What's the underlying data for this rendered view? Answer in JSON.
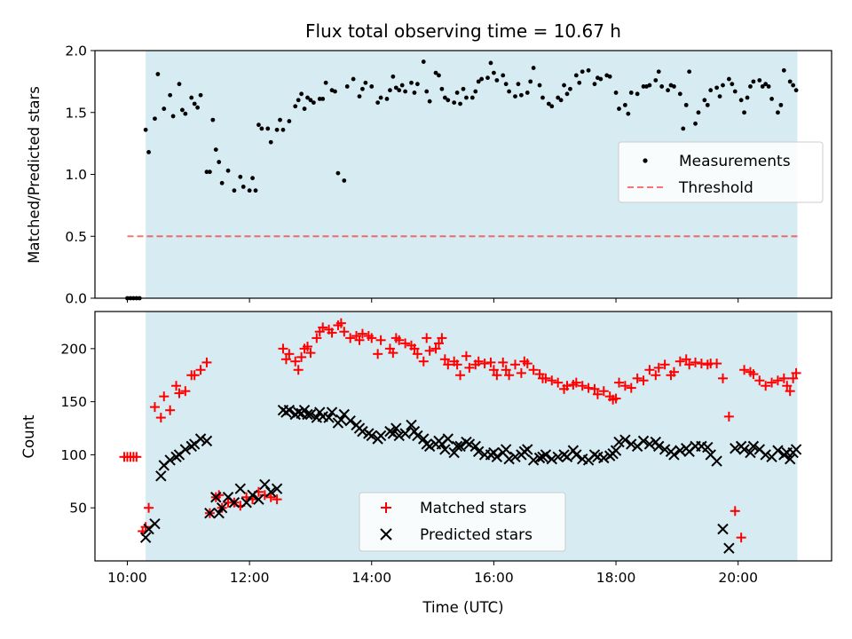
{
  "title": "Flux total observing time = 10.67 h",
  "colors": {
    "background": "#ffffff",
    "shade": "#add8e6",
    "measurement": "#000000",
    "threshold": "#ff0000",
    "matched": "#ff0000",
    "predicted": "#000000"
  },
  "chart_data": [
    {
      "type": "scatter",
      "xlabel": "",
      "ylabel": "Matched/Predicted stars",
      "xlim": [
        9.47,
        21.53
      ],
      "ylim": [
        0,
        2.0
      ],
      "yticks": [
        0.0,
        0.5,
        1.0,
        1.5,
        2.0
      ],
      "ytick_labels": [
        "0.0",
        "0.5",
        "1.0",
        "1.5",
        "2.0"
      ],
      "shaded_region": [
        10.3,
        20.97
      ],
      "legend": {
        "placement": "center-right",
        "entries": [
          "Measurements",
          "Threshold"
        ]
      },
      "threshold": {
        "name": "Threshold",
        "value": 0.5,
        "x_range": [
          10.0,
          20.97
        ],
        "style": "dashed"
      },
      "series": [
        {
          "name": "Measurements",
          "x": [
            10.0,
            10.05,
            10.1,
            10.15,
            10.2,
            10.3,
            10.35,
            10.45,
            10.5,
            10.6,
            10.7,
            10.75,
            10.85,
            10.9,
            10.95,
            11.05,
            11.1,
            11.15,
            11.2,
            11.3,
            11.35,
            11.4,
            11.45,
            11.5,
            11.55,
            11.65,
            11.75,
            11.85,
            11.9,
            12.0,
            12.05,
            12.1,
            12.15,
            12.2,
            12.3,
            12.35,
            12.45,
            12.5,
            12.55,
            12.65,
            12.75,
            12.8,
            12.85,
            12.9,
            12.95,
            13.0,
            13.05,
            13.15,
            13.2,
            13.25,
            13.35,
            13.4,
            13.45,
            13.55,
            13.6,
            13.7,
            13.8,
            13.85,
            13.9,
            14.0,
            14.1,
            14.15,
            14.25,
            14.3,
            14.35,
            14.4,
            14.45,
            14.5,
            14.55,
            14.65,
            14.7,
            14.75,
            14.85,
            14.9,
            14.95,
            15.05,
            15.1,
            15.15,
            15.2,
            15.25,
            15.35,
            15.4,
            15.45,
            15.5,
            15.55,
            15.65,
            15.7,
            15.75,
            15.8,
            15.9,
            15.95,
            16.0,
            16.05,
            16.15,
            16.2,
            16.25,
            16.35,
            16.4,
            16.45,
            16.55,
            16.6,
            16.65,
            16.75,
            16.8,
            16.9,
            16.95,
            17.05,
            17.1,
            17.15,
            17.2,
            17.25,
            17.35,
            17.4,
            17.45,
            17.55,
            17.65,
            17.7,
            17.75,
            17.85,
            17.9,
            18.0,
            18.05,
            18.15,
            18.2,
            18.25,
            18.35,
            18.45,
            18.5,
            18.55,
            18.65,
            18.7,
            18.75,
            18.85,
            18.9,
            18.95,
            19.05,
            19.1,
            19.15,
            19.2,
            19.3,
            19.35,
            19.45,
            19.5,
            19.55,
            19.65,
            19.7,
            19.75,
            19.85,
            19.9,
            19.95,
            20.05,
            20.1,
            20.15,
            20.2,
            20.25,
            20.35,
            20.4,
            20.45,
            20.5,
            20.55,
            20.65,
            20.7,
            20.75,
            20.85,
            20.9,
            20.95
          ],
          "y": [
            0.0,
            0.0,
            0.0,
            0.0,
            0.0,
            1.36,
            1.18,
            1.45,
            1.81,
            1.53,
            1.64,
            1.47,
            1.73,
            1.52,
            1.49,
            1.62,
            1.57,
            1.54,
            1.64,
            1.02,
            1.02,
            1.44,
            1.2,
            1.1,
            0.93,
            1.03,
            0.87,
            0.98,
            0.9,
            0.87,
            0.97,
            0.87,
            1.4,
            1.37,
            1.37,
            1.26,
            1.36,
            1.44,
            1.36,
            1.43,
            1.55,
            1.6,
            1.65,
            1.53,
            1.62,
            1.6,
            1.58,
            1.61,
            1.61,
            1.74,
            1.68,
            1.67,
            1.01,
            0.95,
            1.71,
            1.77,
            1.63,
            1.69,
            1.74,
            1.71,
            1.58,
            1.62,
            1.61,
            1.68,
            1.79,
            1.7,
            1.68,
            1.72,
            1.67,
            1.74,
            1.66,
            1.73,
            1.91,
            1.67,
            1.59,
            1.82,
            1.8,
            1.69,
            1.62,
            1.6,
            1.58,
            1.66,
            1.57,
            1.69,
            1.62,
            1.62,
            1.67,
            1.75,
            1.77,
            1.78,
            1.9,
            1.82,
            1.76,
            1.8,
            1.73,
            1.67,
            1.63,
            1.73,
            1.64,
            1.66,
            1.75,
            1.86,
            1.72,
            1.62,
            1.57,
            1.55,
            1.62,
            1.6,
            1.72,
            1.65,
            1.69,
            1.8,
            1.74,
            1.83,
            1.84,
            1.73,
            1.78,
            1.77,
            1.8,
            1.79,
            1.66,
            1.53,
            1.56,
            1.49,
            1.66,
            1.65,
            1.71,
            1.71,
            1.72,
            1.76,
            1.83,
            1.71,
            1.68,
            1.72,
            1.71,
            1.65,
            1.37,
            1.56,
            1.83,
            1.41,
            1.5,
            1.6,
            1.56,
            1.68,
            1.7,
            1.63,
            1.72,
            1.77,
            1.73,
            1.67,
            1.6,
            1.5,
            1.62,
            1.71,
            1.75,
            1.76,
            1.71,
            1.73,
            1.71,
            1.61,
            1.5,
            1.56,
            1.84,
            1.75,
            1.72,
            1.68
          ]
        }
      ]
    },
    {
      "type": "scatter",
      "xlabel": "Time (UTC)",
      "ylabel": "Count",
      "xlim": [
        9.47,
        21.53
      ],
      "ylim": [
        0,
        235
      ],
      "xticks": [
        10,
        12,
        14,
        16,
        18,
        20
      ],
      "xtick_labels": [
        "10:00",
        "12:00",
        "14:00",
        "16:00",
        "18:00",
        "20:00"
      ],
      "yticks": [
        50,
        100,
        150,
        200
      ],
      "ytick_labels": [
        "50",
        "100",
        "150",
        "200"
      ],
      "shaded_region": [
        10.3,
        20.97
      ],
      "legend": {
        "placement": "bottom-center",
        "entries": [
          "Matched stars",
          "Predicted stars"
        ]
      },
      "series": [
        {
          "name": "Matched stars",
          "marker": "plus",
          "x": [
            9.95,
            10.0,
            10.05,
            10.1,
            10.15,
            10.25,
            10.3,
            10.35,
            10.45,
            10.55,
            10.6,
            10.7,
            10.8,
            10.85,
            10.95,
            11.05,
            11.1,
            11.2,
            11.3,
            11.35,
            11.45,
            11.5,
            11.55,
            11.65,
            11.75,
            11.85,
            11.95,
            12.05,
            12.15,
            12.25,
            12.35,
            12.45,
            12.55,
            12.6,
            12.65,
            12.75,
            12.8,
            12.85,
            12.9,
            12.95,
            13.0,
            13.1,
            13.15,
            13.2,
            13.3,
            13.35,
            13.45,
            13.5,
            13.55,
            13.65,
            13.75,
            13.8,
            13.85,
            13.95,
            14.0,
            14.1,
            14.15,
            14.3,
            14.35,
            14.4,
            14.45,
            14.55,
            14.65,
            14.7,
            14.75,
            14.85,
            14.9,
            14.95,
            15.05,
            15.1,
            15.15,
            15.2,
            15.25,
            15.35,
            15.4,
            15.45,
            15.55,
            15.6,
            15.7,
            15.75,
            15.85,
            15.95,
            16.0,
            16.05,
            16.15,
            16.2,
            16.25,
            16.35,
            16.45,
            16.5,
            16.55,
            16.65,
            16.75,
            16.8,
            16.85,
            16.95,
            17.05,
            17.15,
            17.2,
            17.3,
            17.35,
            17.45,
            17.55,
            17.65,
            17.7,
            17.8,
            17.9,
            17.95,
            18.0,
            18.05,
            18.15,
            18.25,
            18.35,
            18.45,
            18.55,
            18.65,
            18.7,
            18.8,
            18.9,
            18.95,
            19.05,
            19.15,
            19.2,
            19.3,
            19.4,
            19.5,
            19.55,
            19.65,
            19.75,
            19.85,
            19.95,
            20.05,
            20.1,
            20.2,
            20.25,
            20.35,
            20.45,
            20.55,
            20.65,
            20.75,
            20.8,
            20.85,
            20.9,
            20.95
          ],
          "y": [
            98,
            98,
            98,
            98,
            98,
            28,
            32,
            50,
            145,
            135,
            155,
            142,
            165,
            158,
            160,
            175,
            175,
            180,
            187,
            45,
            60,
            62,
            50,
            55,
            55,
            52,
            60,
            58,
            65,
            62,
            60,
            58,
            200,
            190,
            195,
            188,
            180,
            192,
            200,
            202,
            196,
            210,
            216,
            220,
            218,
            215,
            222,
            224,
            216,
            210,
            212,
            208,
            214,
            212,
            210,
            195,
            208,
            200,
            196,
            210,
            208,
            205,
            203,
            200,
            195,
            188,
            210,
            198,
            200,
            205,
            210,
            190,
            185,
            188,
            185,
            175,
            193,
            182,
            185,
            188,
            186,
            187,
            180,
            175,
            187,
            180,
            175,
            185,
            177,
            188,
            186,
            180,
            176,
            172,
            172,
            170,
            168,
            162,
            165,
            166,
            168,
            165,
            163,
            162,
            157,
            160,
            155,
            152,
            153,
            168,
            165,
            163,
            172,
            170,
            180,
            175,
            182,
            185,
            175,
            178,
            188,
            190,
            185,
            187,
            186,
            185,
            186,
            186,
            172,
            136,
            47,
            22,
            180,
            178,
            176,
            170,
            165,
            168,
            170,
            172,
            165,
            160,
            172,
            177
          ]
        },
        {
          "name": "Predicted stars",
          "marker": "x",
          "x": [
            10.3,
            10.35,
            10.45,
            10.55,
            10.6,
            10.7,
            10.8,
            10.85,
            10.95,
            11.05,
            11.1,
            11.2,
            11.3,
            11.35,
            11.45,
            11.5,
            11.55,
            11.65,
            11.75,
            11.85,
            11.95,
            12.05,
            12.15,
            12.25,
            12.35,
            12.45,
            12.55,
            12.6,
            12.65,
            12.75,
            12.8,
            12.85,
            12.9,
            12.95,
            13.0,
            13.1,
            13.15,
            13.2,
            13.3,
            13.35,
            13.45,
            13.5,
            13.55,
            13.65,
            13.75,
            13.8,
            13.85,
            13.95,
            14.0,
            14.1,
            14.15,
            14.3,
            14.35,
            14.4,
            14.45,
            14.55,
            14.65,
            14.7,
            14.75,
            14.85,
            14.9,
            14.95,
            15.05,
            15.1,
            15.15,
            15.2,
            15.25,
            15.35,
            15.4,
            15.45,
            15.55,
            15.6,
            15.7,
            15.75,
            15.85,
            15.95,
            16.0,
            16.05,
            16.15,
            16.2,
            16.25,
            16.35,
            16.45,
            16.5,
            16.55,
            16.65,
            16.75,
            16.8,
            16.85,
            16.95,
            17.05,
            17.15,
            17.2,
            17.3,
            17.35,
            17.45,
            17.55,
            17.65,
            17.7,
            17.8,
            17.9,
            17.95,
            18.0,
            18.05,
            18.15,
            18.25,
            18.35,
            18.45,
            18.55,
            18.65,
            18.7,
            18.8,
            18.9,
            18.95,
            19.05,
            19.15,
            19.2,
            19.3,
            19.4,
            19.5,
            19.55,
            19.65,
            19.75,
            19.85,
            19.95,
            20.05,
            20.1,
            20.2,
            20.25,
            20.35,
            20.45,
            20.55,
            20.65,
            20.75,
            20.8,
            20.85,
            20.9,
            20.95
          ],
          "y": [
            22,
            30,
            35,
            80,
            90,
            95,
            98,
            100,
            105,
            108,
            110,
            115,
            113,
            45,
            60,
            45,
            50,
            60,
            55,
            68,
            55,
            62,
            58,
            72,
            65,
            68,
            142,
            140,
            142,
            138,
            140,
            139,
            142,
            138,
            138,
            135,
            140,
            136,
            135,
            140,
            130,
            133,
            138,
            132,
            128,
            125,
            122,
            120,
            118,
            115,
            118,
            122,
            120,
            125,
            118,
            120,
            128,
            122,
            118,
            115,
            110,
            108,
            110,
            113,
            110,
            105,
            115,
            102,
            108,
            108,
            112,
            110,
            108,
            103,
            100,
            100,
            102,
            98,
            102,
            105,
            96,
            98,
            100,
            103,
            105,
            95,
            97,
            98,
            100,
            96,
            98,
            100,
            98,
            104,
            100,
            96,
            95,
            100,
            98,
            97,
            99,
            101,
            104,
            112,
            114,
            110,
            108,
            113,
            110,
            112,
            108,
            105,
            103,
            100,
            104,
            106,
            103,
            108,
            108,
            107,
            100,
            94,
            30,
            12,
            106,
            108,
            105,
            102,
            108,
            105,
            100,
            98,
            104,
            100,
            102,
            96,
            102,
            105
          ]
        }
      ]
    }
  ]
}
